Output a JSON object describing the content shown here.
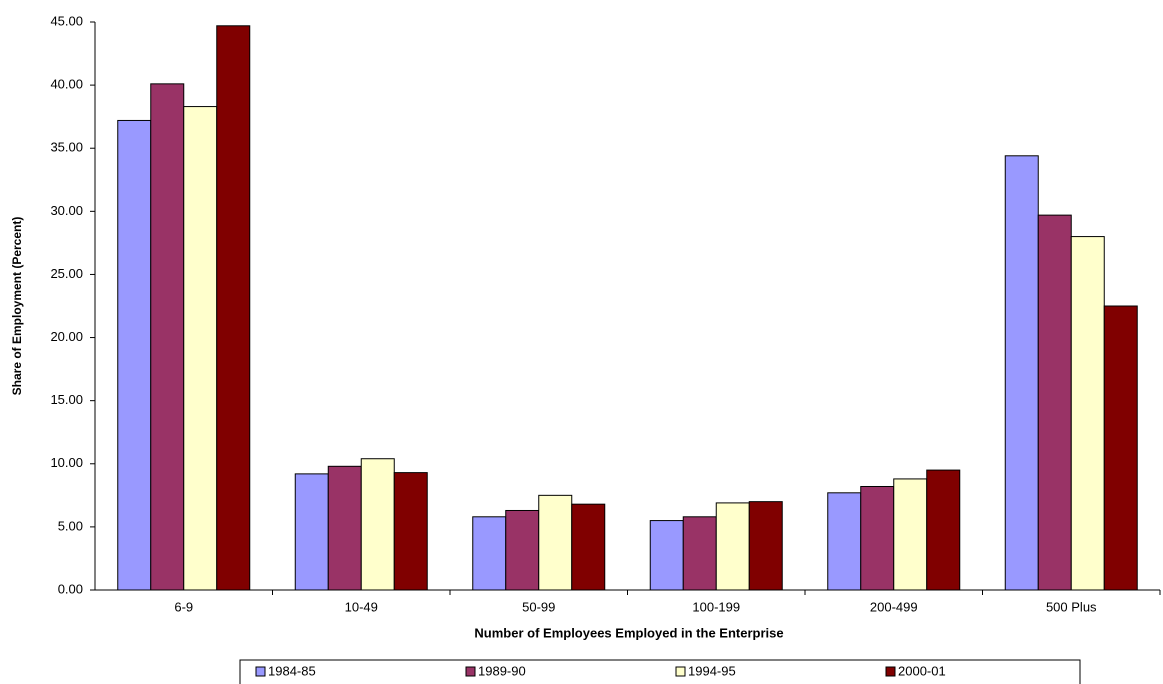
{
  "chart_data": {
    "type": "bar",
    "x_label": "Number of Employees Employed in the Enterprise",
    "y_label": "Share of Employment (Percent)",
    "categories": [
      "6-9",
      "10-49",
      "50-99",
      "100-199",
      "200-499",
      "500 Plus"
    ],
    "series": [
      {
        "name": "1984-85",
        "color": "#9999ff",
        "values": [
          37.2,
          9.2,
          5.8,
          5.5,
          7.7,
          34.4
        ]
      },
      {
        "name": "1989-90",
        "color": "#993366",
        "values": [
          40.1,
          9.8,
          6.3,
          5.8,
          8.2,
          29.7
        ]
      },
      {
        "name": "1994-95",
        "color": "#ffffcc",
        "values": [
          38.3,
          10.4,
          7.5,
          6.9,
          8.8,
          28.0
        ]
      },
      {
        "name": "2000-01",
        "color": "#800000",
        "values": [
          44.7,
          9.3,
          6.8,
          7.0,
          9.5,
          22.5
        ]
      }
    ],
    "ylim": [
      0,
      45
    ],
    "yticks": [
      {
        "value": 0,
        "label": "0.00"
      },
      {
        "value": 5,
        "label": "5.00"
      },
      {
        "value": 10,
        "label": "10.00"
      },
      {
        "value": 15,
        "label": "15.00"
      },
      {
        "value": 20,
        "label": "20.00"
      },
      {
        "value": 25,
        "label": "25.00"
      },
      {
        "value": 30,
        "label": "30.00"
      },
      {
        "value": 35,
        "label": "35.00"
      },
      {
        "value": 40,
        "label": "40.00"
      },
      {
        "value": 45,
        "label": "45.00"
      }
    ],
    "grid": false,
    "legend": "bottom"
  }
}
